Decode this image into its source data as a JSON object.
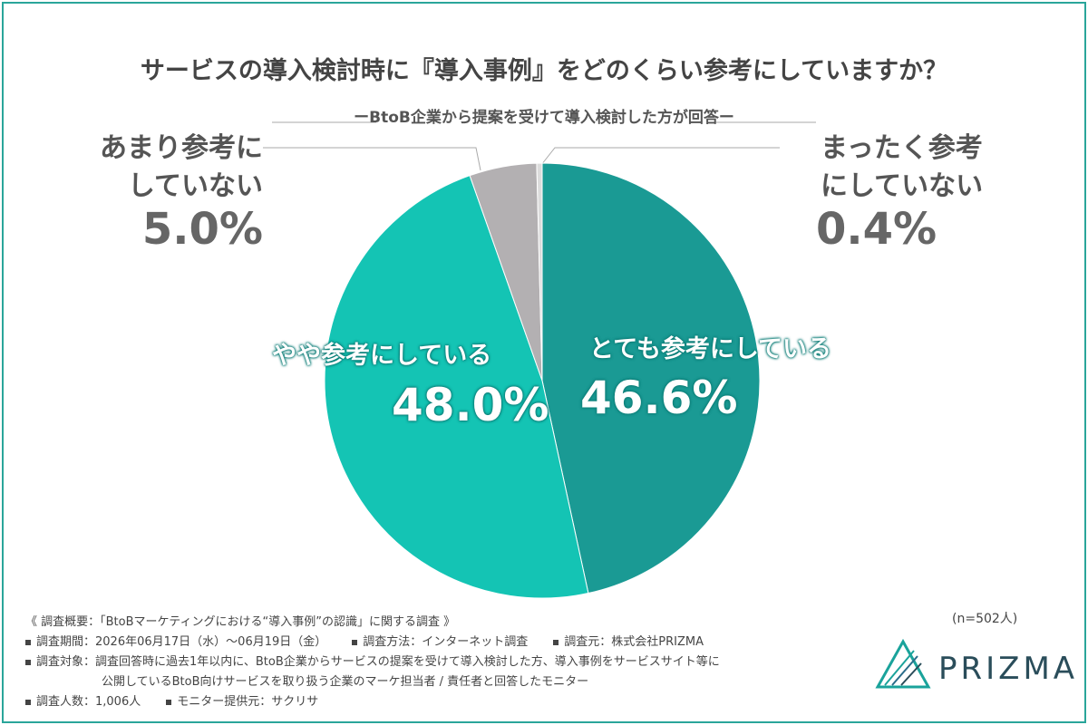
{
  "chart_data": {
    "type": "pie",
    "title": "サービスの導入検討時に『導入事例』をどのくらい参考にしていますか？",
    "subtitle": "ーBtoB企業から提案を受けて導入検討した方が回答ー",
    "categories": [
      "とても参考にしている",
      "やや参考にしている",
      "あまり参考にしていない",
      "まったく参考にしていない"
    ],
    "values": [
      46.6,
      48.0,
      5.0,
      0.4
    ],
    "value_labels": [
      "46.6%",
      "48.0%",
      "5.0%",
      "0.4%"
    ],
    "colors": [
      "#1a9a94",
      "#14c4b4",
      "#b3b0b2",
      "#dcdcdc"
    ],
    "sample_note": "(n=502人)"
  },
  "notes": [
    [
      "《 調査概要：「BtoBマーケティングにおける“導入事例”の認識」に関する調査 》"
    ],
    [
      "調査期間：2026年06月17日（水）〜06月19日（金）",
      "調査方法：インターネット調査",
      "調査元：株式会社PRIZMA"
    ],
    [
      "調査対象：調査回答時に過去1年以内に、BtoB企業からサービスの提案を受けて導入検討した方、導入事例をサービスサイト等に"
    ],
    [
      "公開しているBtoB向けサービスを取り扱う企業のマーケ担当者 / 責任者と回答したモニター"
    ],
    [
      "調査人数：1,006人",
      "モニター提供元：サクリサ"
    ]
  ],
  "brand": "PRIZMA"
}
